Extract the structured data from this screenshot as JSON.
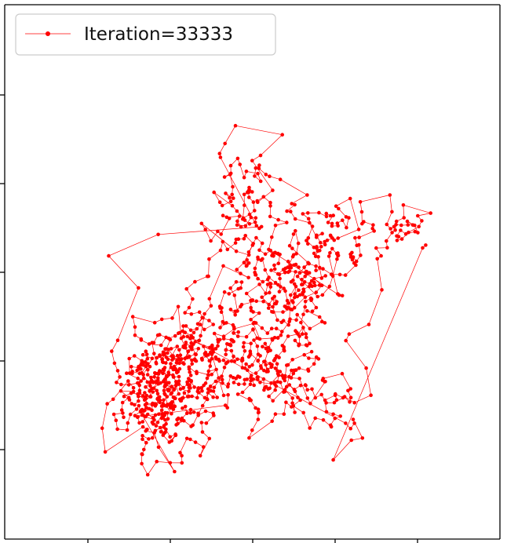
{
  "chart_data": {
    "type": "line",
    "title": "",
    "xlabel": "",
    "ylabel": "",
    "xlim": [
      0,
      100
    ],
    "ylim": [
      0,
      100
    ],
    "grid": false,
    "legend_placement": "top-left",
    "series": [
      {
        "name": "Iteration=33333",
        "color": "#ff0000",
        "marker": "point",
        "path_count": 1200,
        "x": [],
        "y": []
      }
    ]
  }
}
